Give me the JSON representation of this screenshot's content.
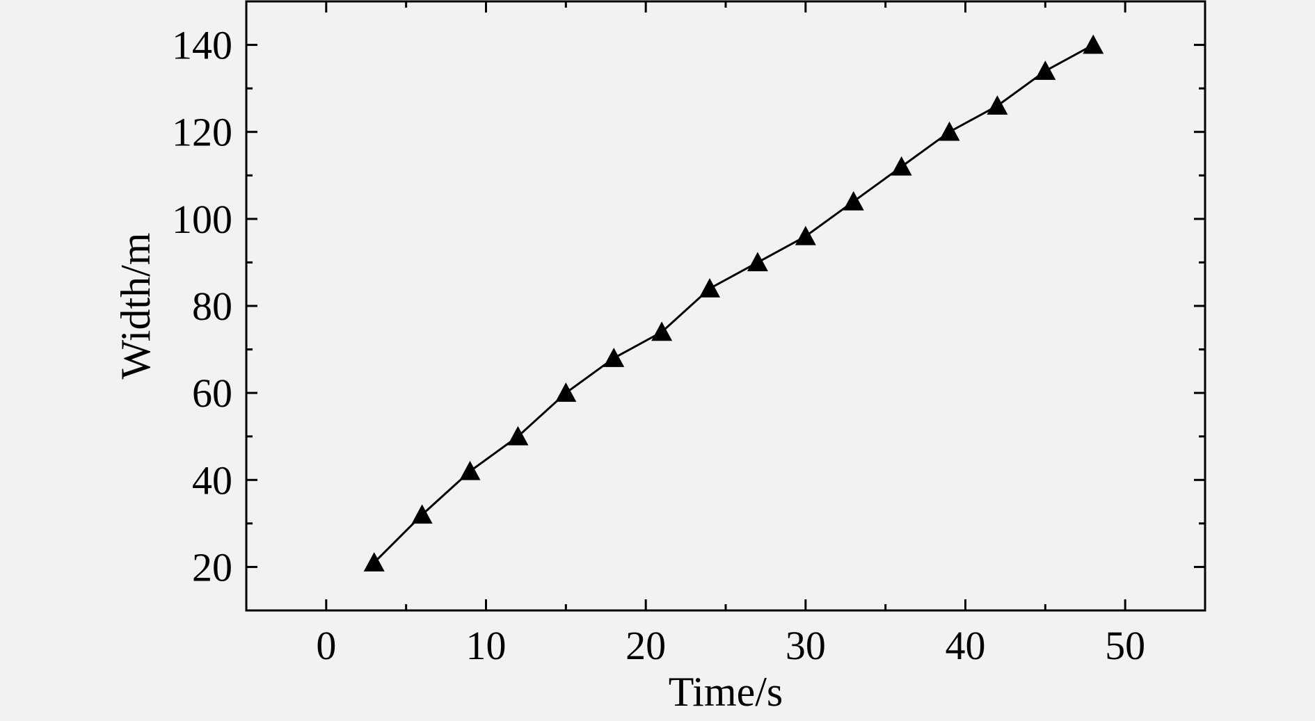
{
  "chart_data": {
    "type": "line",
    "title": "",
    "xlabel": "Time/s",
    "ylabel": "Width/m",
    "xlim": [
      -5,
      55
    ],
    "ylim": [
      10,
      150
    ],
    "x_ticks": [
      0,
      10,
      20,
      30,
      40,
      50
    ],
    "x_minor_ticks": [
      5,
      15,
      25,
      35,
      45
    ],
    "y_ticks": [
      20,
      40,
      60,
      80,
      100,
      120,
      140
    ],
    "y_minor_ticks": [
      30,
      50,
      70,
      90,
      110,
      130
    ],
    "grid": false,
    "legend": "none",
    "colors": {
      "background": "#f2f2f2",
      "line": "#000000",
      "marker": "#000000"
    },
    "series": [
      {
        "marker": "triangle",
        "x": [
          3,
          6,
          9,
          12,
          15,
          18,
          21,
          24,
          27,
          30,
          33,
          36,
          39,
          42,
          45,
          48
        ],
        "y": [
          21,
          32,
          42,
          50,
          60,
          68,
          74,
          84,
          90,
          96,
          104,
          112,
          120,
          126,
          134,
          140
        ]
      }
    ]
  }
}
